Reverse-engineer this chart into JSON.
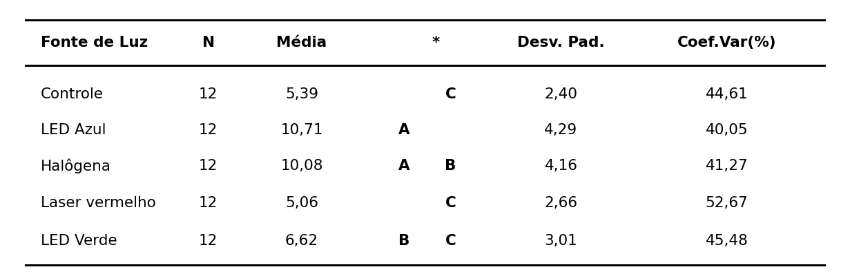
{
  "headers": [
    "Fonte de Luz",
    "N",
    "Média",
    "*",
    "Desv. Pad.",
    "Coef.Var(%)"
  ],
  "rows": [
    [
      "Controle",
      "12",
      "5,39",
      [
        [
          "",
          "C"
        ]
      ],
      "2,40",
      "44,61"
    ],
    [
      "LED Azul",
      "12",
      "10,71",
      [
        [
          "A",
          ""
        ]
      ],
      "4,29",
      "40,05"
    ],
    [
      "Halôgena",
      "12",
      "10,08",
      [
        [
          "A",
          "B"
        ]
      ],
      "4,16",
      "41,27"
    ],
    [
      "Laser vermelho",
      "12",
      "5,06",
      [
        [
          "",
          "C"
        ]
      ],
      "2,66",
      "52,67"
    ],
    [
      "LED Verde",
      "12",
      "6,62",
      [
        [
          "B",
          "C"
        ]
      ],
      "3,01",
      "45,48"
    ]
  ],
  "bg_color": "#ffffff",
  "text_color": "#000000",
  "line_color": "#000000",
  "figsize": [
    12.31,
    4.02
  ],
  "dpi": 100
}
